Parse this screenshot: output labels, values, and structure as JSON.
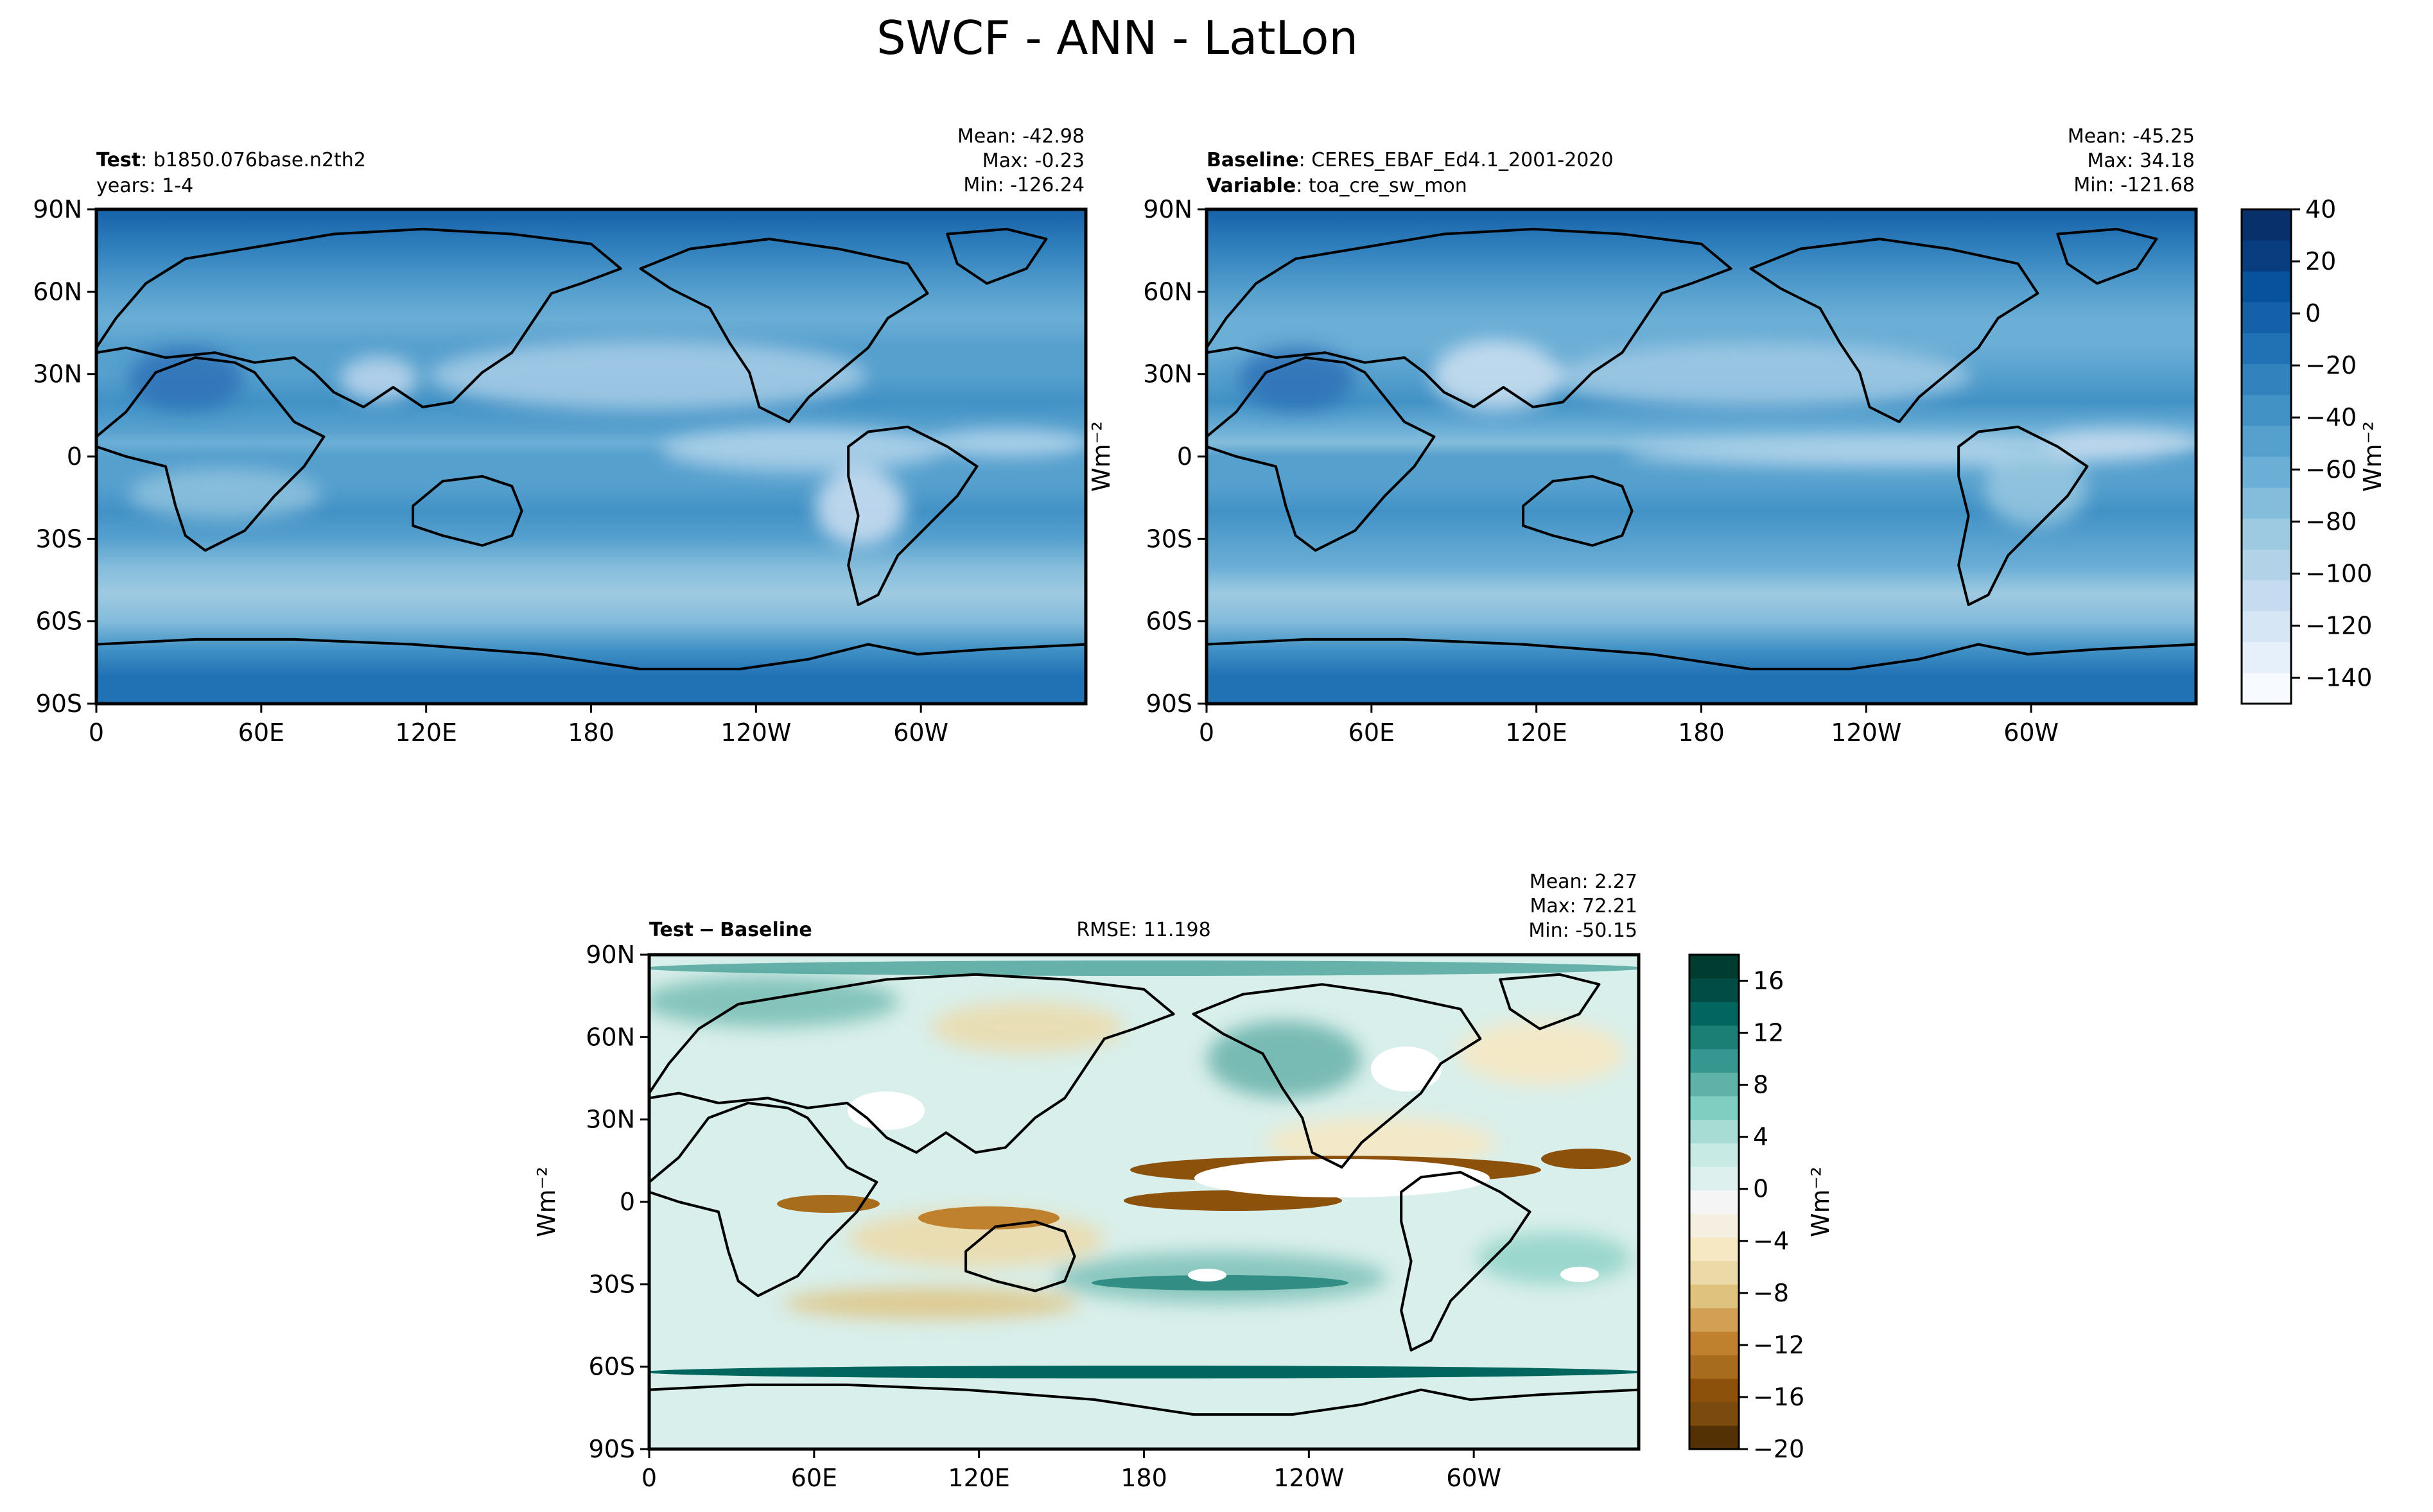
{
  "figure": {
    "title": "SWCF - ANN - LatLon"
  },
  "panels": {
    "test": {
      "name_label": "Test",
      "name_value": "b1850.076base.n2th2",
      "line2_text": "years: 1-4",
      "stats": {
        "mean": "Mean: -42.98",
        "max": "Max: -0.23",
        "min": "Min: -126.24"
      }
    },
    "baseline": {
      "name_label": "Baseline",
      "name_value": "CERES_EBAF_Ed4.1_2001-2020",
      "var_label": "Variable",
      "var_value": "toa_cre_sw_mon",
      "stats": {
        "mean": "Mean: -45.25",
        "max": "Max: 34.18",
        "min": "Min: -121.68"
      }
    },
    "diff": {
      "name_label": "Test",
      "name_sep": "−",
      "name_value": "Baseline",
      "rmse": "RMSE: 11.198",
      "stats": {
        "mean": "Mean:  2.27",
        "max": "Max: 72.21",
        "min": "Min: -50.15"
      }
    }
  },
  "colorbars": {
    "main": {
      "label": "Wm⁻²",
      "ticks": [
        "40",
        "20",
        "0",
        "−20",
        "−40",
        "−60",
        "−80",
        "−100",
        "−120",
        "−140"
      ],
      "tick_values": [
        40,
        20,
        0,
        -20,
        -40,
        -60,
        -80,
        -100,
        -120,
        -140
      ],
      "range": [
        -150,
        40
      ],
      "colors": [
        "#f7fbff",
        "#e6f0fa",
        "#d6e6f4",
        "#c6dbef",
        "#b2d2e8",
        "#9ecae1",
        "#84bcdb",
        "#6baed6",
        "#56a0ce",
        "#4292c6",
        "#3282be",
        "#2171b5",
        "#1561a9",
        "#08519c",
        "#083d7f",
        "#08306b"
      ]
    },
    "diff": {
      "label": "Wm⁻²",
      "ticks": [
        "16",
        "12",
        "8",
        "4",
        "0",
        "−4",
        "−8",
        "−12",
        "−16",
        "−20"
      ],
      "tick_values": [
        16,
        12,
        8,
        4,
        0,
        -4,
        -8,
        -12,
        -16,
        -20
      ],
      "range": [
        -20,
        18
      ],
      "colors": [
        "#543005",
        "#7a4a0e",
        "#8c510a",
        "#a86c1d",
        "#bf812d",
        "#d1a055",
        "#dfc27d",
        "#ecd9a8",
        "#f6e8c3",
        "#f5efe2",
        "#f5f5f5",
        "#ddf0ed",
        "#c7eae5",
        "#a6dcd3",
        "#80cdc1",
        "#5fb2a7",
        "#35978f",
        "#1c7f76",
        "#01665e",
        "#014d45",
        "#003c30"
      ]
    }
  },
  "side_labels": {
    "main_ylabel": "Wm⁻²",
    "diff_ylabel": "Wm⁻²"
  },
  "chart_data": [
    {
      "type": "heatmap",
      "name": "Test",
      "x": [
        "0",
        "60E",
        "120E",
        "180",
        "120W",
        "60W"
      ],
      "y": [
        "90N",
        "60N",
        "30N",
        "0",
        "30S",
        "60S",
        "90S"
      ],
      "xlim": [
        0,
        360
      ],
      "ylim": [
        -90,
        90
      ],
      "mean": -42.98,
      "max": -0.23,
      "min": -126.24,
      "colorbar": "main",
      "zonal_profile": {
        "lat": [
          90,
          75,
          60,
          50,
          40,
          30,
          20,
          10,
          5,
          0,
          -5,
          -10,
          -20,
          -30,
          -40,
          -50,
          -60,
          -70,
          -80,
          -90
        ],
        "swcf": [
          -5,
          -20,
          -45,
          -65,
          -55,
          -45,
          -35,
          -55,
          -60,
          -50,
          -55,
          -50,
          -40,
          -45,
          -70,
          -85,
          -75,
          -35,
          -15,
          -10
        ]
      }
    },
    {
      "type": "heatmap",
      "name": "Baseline",
      "x": [
        "0",
        "60E",
        "120E",
        "180",
        "120W",
        "60W"
      ],
      "y": [
        "90N",
        "60N",
        "30N",
        "0",
        "30S",
        "60S",
        "90S"
      ],
      "xlim": [
        0,
        360
      ],
      "ylim": [
        -90,
        90
      ],
      "mean": -45.25,
      "max": 34.18,
      "min": -121.68,
      "colorbar": "main",
      "zonal_profile": {
        "lat": [
          90,
          75,
          60,
          50,
          40,
          30,
          20,
          10,
          5,
          0,
          -5,
          -10,
          -20,
          -30,
          -40,
          -50,
          -60,
          -70,
          -80,
          -90
        ],
        "swcf": [
          -5,
          -20,
          -45,
          -65,
          -60,
          -45,
          -35,
          -60,
          -70,
          -50,
          -55,
          -50,
          -40,
          -45,
          -65,
          -80,
          -75,
          -35,
          -15,
          -10
        ]
      }
    },
    {
      "type": "heatmap",
      "name": "Test − Baseline",
      "x": [
        "0",
        "60E",
        "120E",
        "180",
        "120W",
        "60W"
      ],
      "y": [
        "90N",
        "60N",
        "30N",
        "0",
        "30S",
        "60S",
        "90S"
      ],
      "xlim": [
        0,
        360
      ],
      "ylim": [
        -90,
        90
      ],
      "mean": 2.27,
      "max": 72.21,
      "min": -50.15,
      "rmse": 11.198,
      "colorbar": "diff"
    }
  ]
}
